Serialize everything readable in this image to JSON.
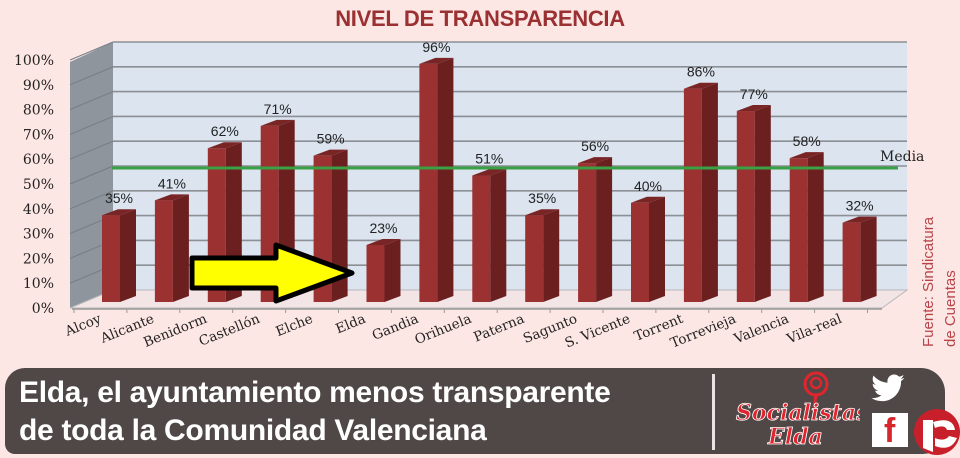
{
  "title": "NIVEL DE TRANSPARENCIA",
  "y_axis": {
    "ticks": [
      "0%",
      "10%",
      "20%",
      "30%",
      "40%",
      "50%",
      "60%",
      "70%",
      "80%",
      "90%",
      "100%"
    ]
  },
  "media_label": "Media",
  "source": {
    "line1": "Fuente: Sindicatura",
    "line2": "de Cuentas"
  },
  "banner": {
    "line1": "Elda, el ayuntamiento menos transparente",
    "line2": "de toda la Comunidad Valenciana",
    "logo_line1": "Socialistas",
    "logo_line2": "Elda"
  },
  "colors": {
    "background": "#fde7e4",
    "bar_front": "#9b3131",
    "bar_side": "#6b1f1f",
    "bar_top": "#7a2525",
    "wall": "#dbe4ef",
    "side_wall": "#8e959d",
    "media_line": "#3aa045",
    "arrow": "#ffff00",
    "title": "#9b3032",
    "banner": "#4f4847"
  },
  "chart_data": {
    "type": "bar",
    "title": "NIVEL DE TRANSPARENCIA",
    "xlabel": "",
    "ylabel": "",
    "ylim": [
      0,
      100
    ],
    "y_unit": "%",
    "categories": [
      "Alcoy",
      "Alicante",
      "Benidorm",
      "Castellón",
      "Elche",
      "Elda",
      "Gandia",
      "Orihuela",
      "Paterna",
      "Sagunto",
      "S. Vicente",
      "Torrent",
      "Torrevieja",
      "Valencia",
      "Vila-real"
    ],
    "values": [
      35,
      41,
      62,
      71,
      59,
      23,
      96,
      51,
      35,
      56,
      40,
      86,
      77,
      58,
      32
    ],
    "labels": [
      "35%",
      "41%",
      "62%",
      "71%",
      "59%",
      "23%",
      "96%",
      "51%",
      "35%",
      "56%",
      "40%",
      "86%",
      "77%",
      "58%",
      "32%"
    ],
    "reference_line": {
      "name": "Media",
      "value": 55
    },
    "annotations": [
      "Arrow pointing to Elda",
      "Fuente: Sindicatura de Cuentas"
    ],
    "grid": true,
    "style": "3d-columns",
    "highlight": "Elda"
  }
}
